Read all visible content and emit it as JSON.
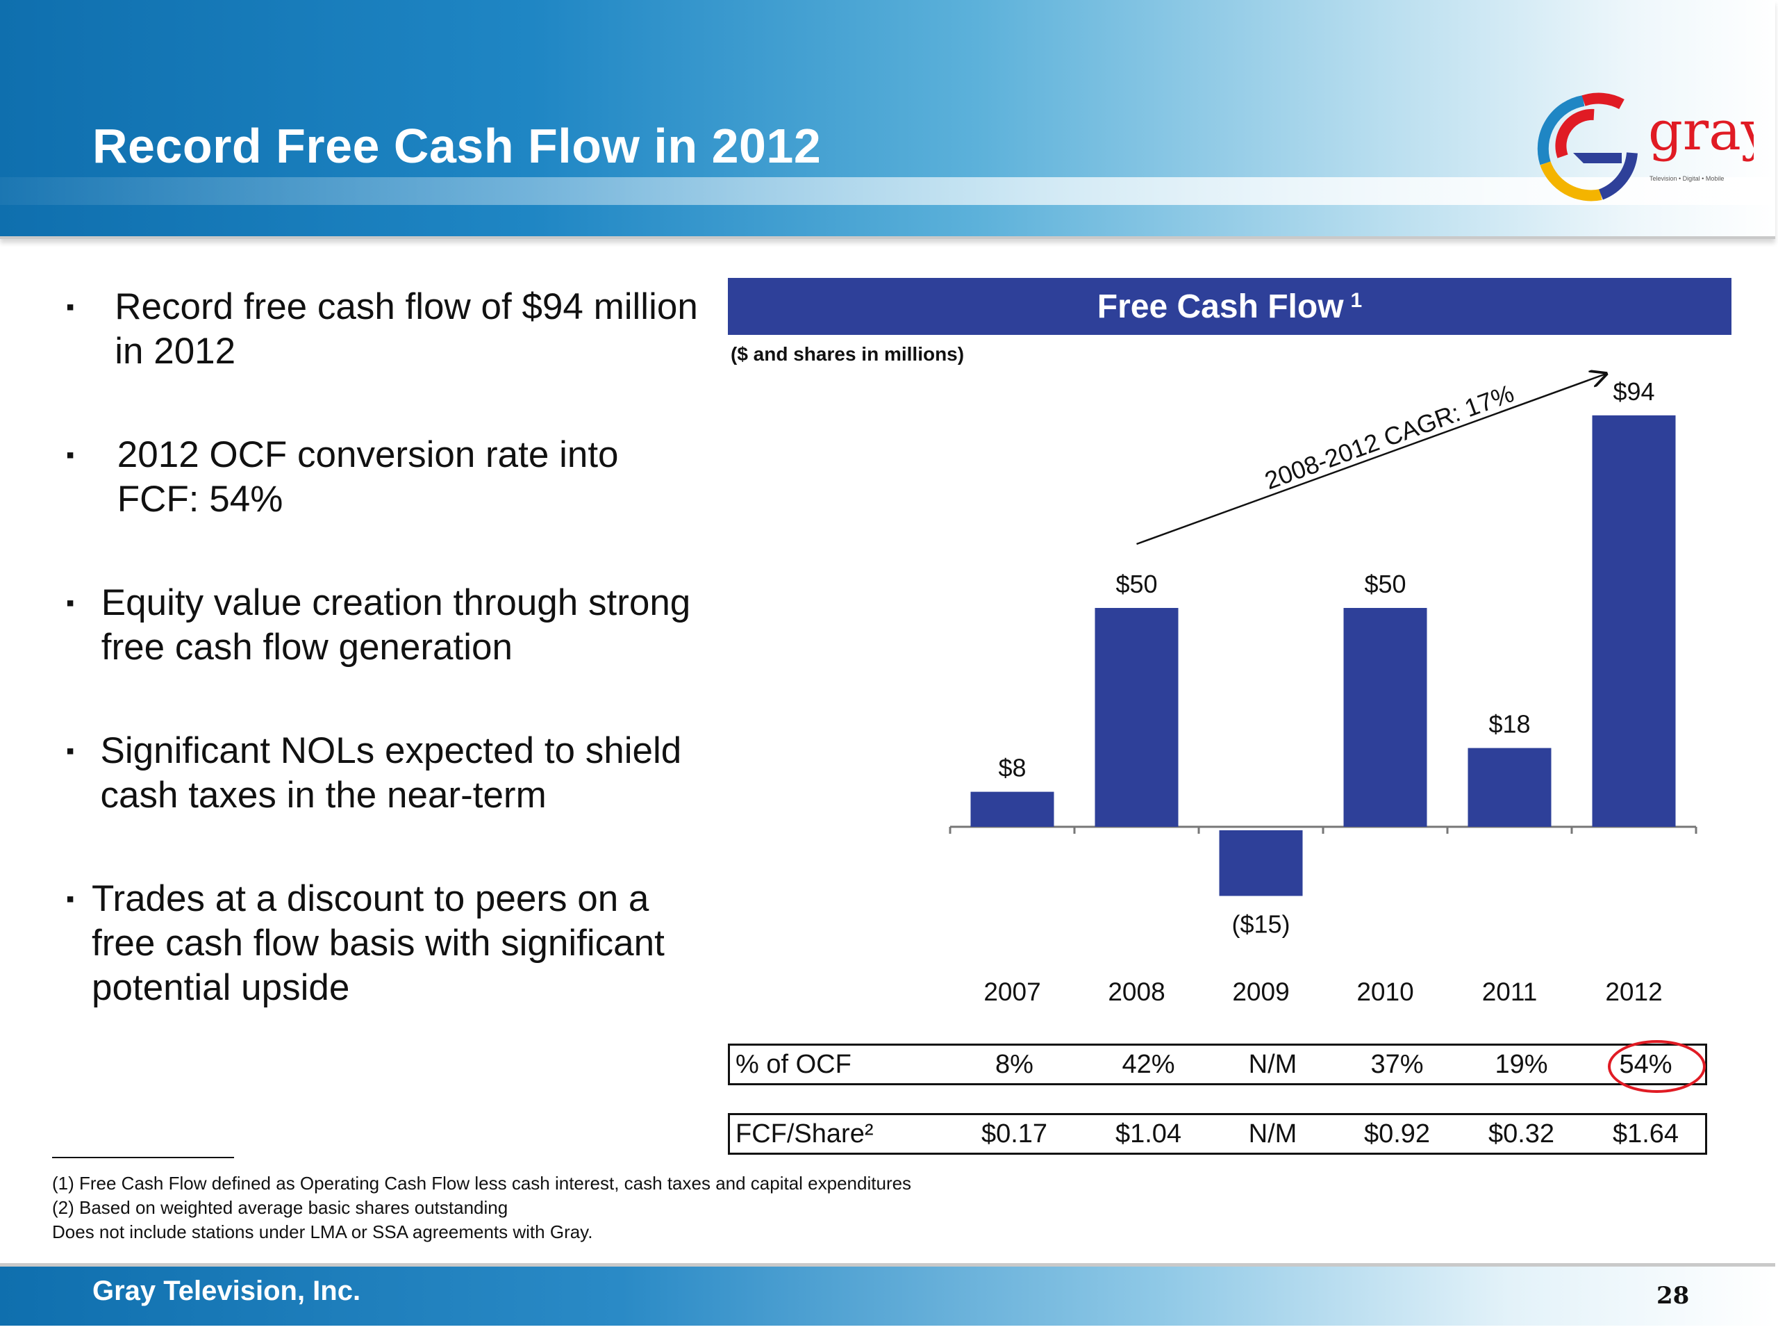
{
  "slide": {
    "title": "Record Free Cash Flow in 2012",
    "company": "Gray Television, Inc.",
    "page": "28",
    "logo": {
      "wordmark": "gray",
      "tagline": "Television • Digital • Mobile",
      "colors": [
        "#e01b24",
        "#f4b400",
        "#1f86c4",
        "#2e4099"
      ]
    }
  },
  "bullets": [
    {
      "marker": "▪",
      "text": "Record free cash flow of $94 million in 2012"
    },
    {
      "marker": "▪",
      "text": "2012 OCF conversion rate into FCF: 54%"
    },
    {
      "marker": "▪",
      "text": "Equity value creation through strong free cash flow generation"
    },
    {
      "marker": "▪",
      "text": "Significant NOLs expected to shield cash taxes in the near-term"
    },
    {
      "marker": "▪",
      "text": "Trades at a discount to peers on a free cash flow basis with significant potential upside"
    }
  ],
  "chart_data": {
    "type": "bar",
    "title": "Free Cash Flow",
    "title_superscript": "1",
    "units_note": "($ and shares in millions)",
    "categories": [
      "2007",
      "2008",
      "2009",
      "2010",
      "2011",
      "2012"
    ],
    "values": [
      8,
      50,
      -15,
      50,
      18,
      94
    ],
    "data_labels": [
      "$8",
      "$50",
      "($15)",
      "$50",
      "$18",
      "$94"
    ],
    "bar_color": "#2e4099",
    "annotation": "2008-2012 CAGR: 17%",
    "grid": false
  },
  "table": {
    "rows": [
      {
        "label": "% of OCF",
        "values": [
          "8%",
          "42%",
          "N/M",
          "37%",
          "19%",
          "54%"
        ]
      },
      {
        "label": "FCF/Share²",
        "values": [
          "$0.17",
          "$1.04",
          "N/M",
          "$0.92",
          "$0.32",
          "$1.64"
        ]
      }
    ],
    "highlight": {
      "row": 0,
      "column": 5,
      "color": "#e01b24"
    }
  },
  "footnotes": [
    "(1) Free Cash Flow defined as Operating Cash Flow less cash interest, cash taxes and capital expenditures",
    "(2) Based on weighted average basic shares outstanding",
    "Does not include stations under LMA or SSA agreements with Gray."
  ]
}
